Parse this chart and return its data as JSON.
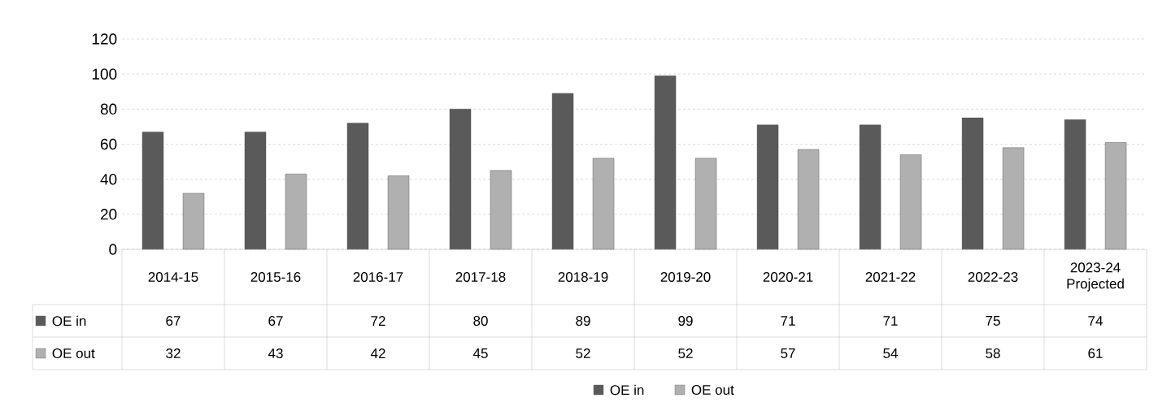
{
  "chart_data": {
    "type": "bar",
    "categories": [
      "2014-15",
      "2015-16",
      "2016-17",
      "2017-18",
      "2018-19",
      "2019-20",
      "2020-21",
      "2021-22",
      "2022-23",
      "2023-24 Projected"
    ],
    "series": [
      {
        "name": "OE in",
        "color": "#5a5a5a",
        "values": [
          67,
          67,
          72,
          80,
          89,
          99,
          71,
          71,
          75,
          74
        ]
      },
      {
        "name": "OE out",
        "color": "#b0b0b0",
        "values": [
          32,
          43,
          42,
          45,
          52,
          52,
          57,
          54,
          58,
          61
        ]
      }
    ],
    "ylim": [
      0,
      120
    ],
    "yticks": [
      0,
      20,
      40,
      60,
      80,
      100,
      120
    ],
    "grid": "y",
    "data_labels": true,
    "legend": "bottom"
  }
}
